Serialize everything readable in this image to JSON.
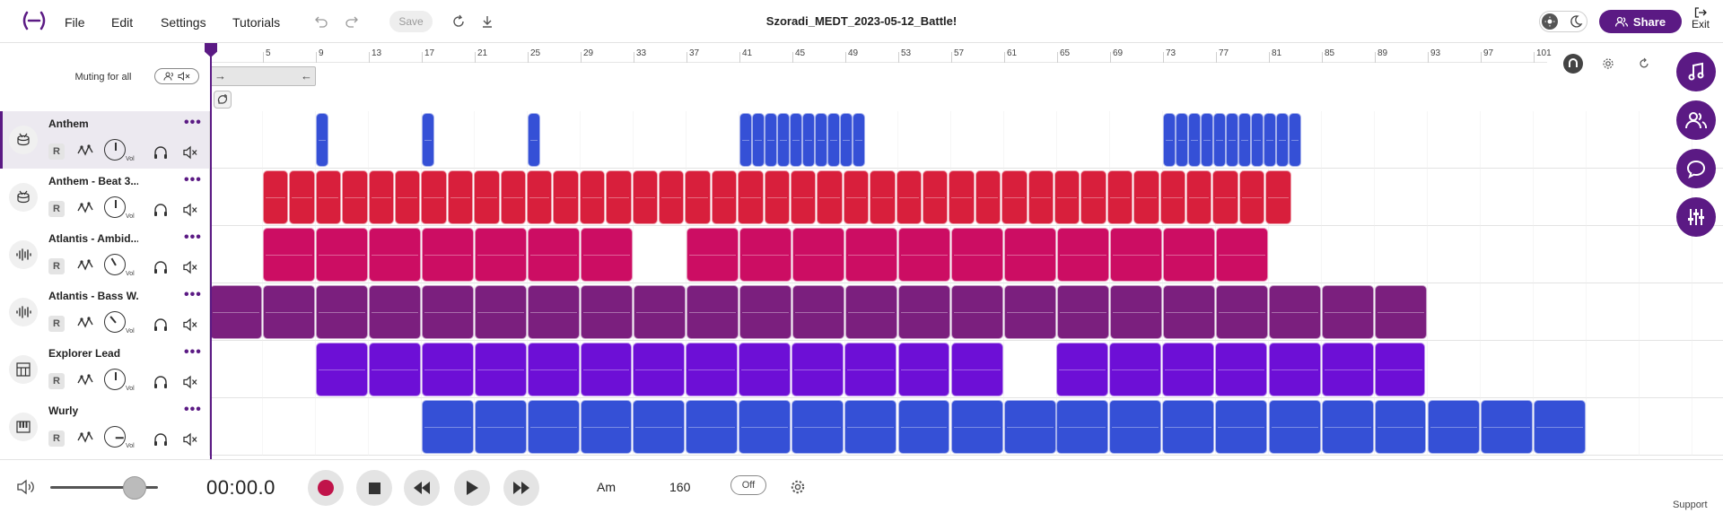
{
  "menu": {
    "file": "File",
    "edit": "Edit",
    "settings": "Settings",
    "tutorials": "Tutorials",
    "save": "Save"
  },
  "project_title": "Szoradi_MEDT_2023-05-12_Battle!",
  "share_label": "Share",
  "exit_label": "Exit",
  "muting_label": "Muting for all",
  "ruler": [
    "5",
    "9",
    "13",
    "17",
    "21",
    "25",
    "29",
    "33",
    "37",
    "41",
    "45",
    "49",
    "53",
    "57",
    "61",
    "65",
    "69",
    "73",
    "77",
    "81",
    "85",
    "89",
    "93",
    "97",
    "101"
  ],
  "tracks": [
    {
      "name": "Anthem",
      "icon": "drum-icon",
      "record": "R",
      "vol_label": "Vol",
      "color": "#3550d6",
      "selected": true
    },
    {
      "name": "Anthem - Beat 3...",
      "icon": "drum-icon",
      "record": "R",
      "vol_label": "Vol",
      "color": "#d81f3c",
      "selected": false
    },
    {
      "name": "Atlantis - Ambid...",
      "icon": "waveform-icon",
      "record": "R",
      "vol_label": "Vol",
      "color": "#cc0d63",
      "selected": false
    },
    {
      "name": "Atlantis - Bass W...",
      "icon": "waveform-icon",
      "record": "R",
      "vol_label": "Vol",
      "color": "#7b1f7e",
      "selected": false
    },
    {
      "name": "Explorer Lead",
      "icon": "keyboard-icon",
      "record": "R",
      "vol_label": "Vol",
      "color": "#6d0fd6",
      "selected": false
    },
    {
      "name": "Wurly",
      "icon": "piano-icon",
      "record": "R",
      "vol_label": "Vol",
      "color": "#3550d6",
      "selected": false
    }
  ],
  "transport": {
    "time": "00:00.0",
    "key": "Am",
    "tempo": "160",
    "metronome": "Off"
  },
  "support_label": "Support"
}
